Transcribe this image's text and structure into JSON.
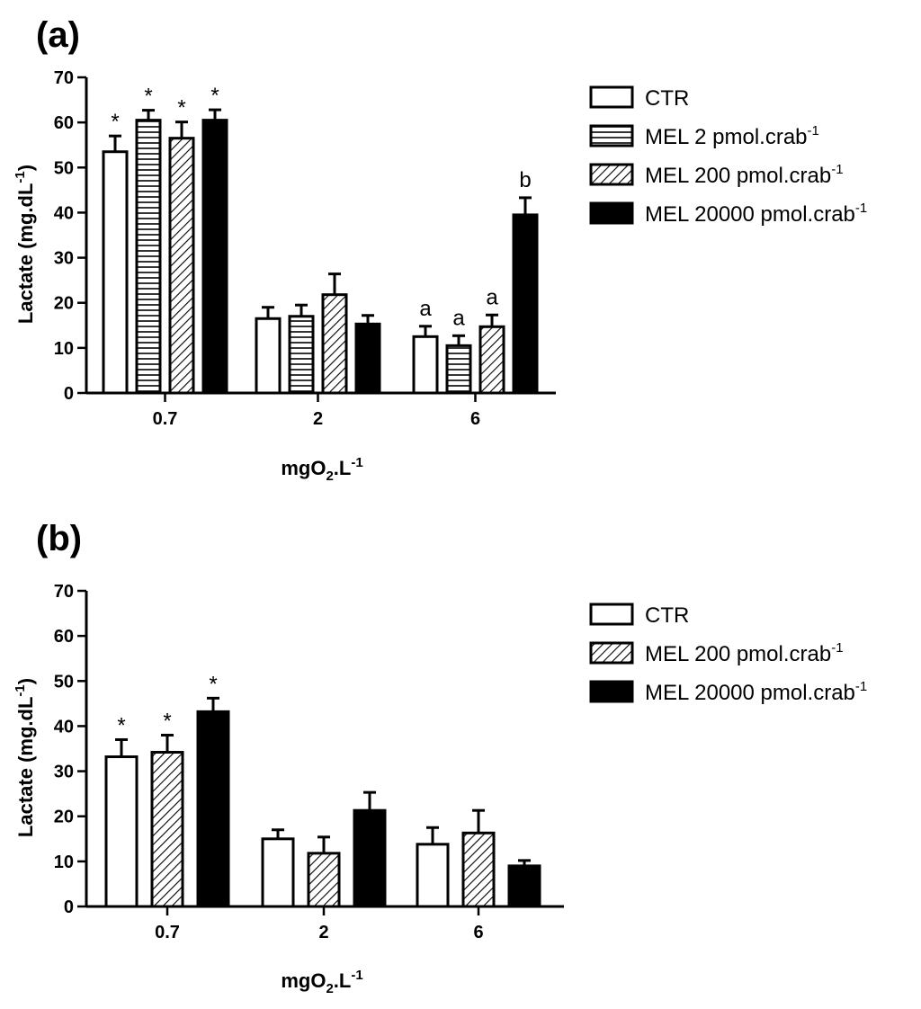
{
  "chart_data": [
    {
      "type": "bar",
      "panel_label": "(a)",
      "categories": [
        "0.7",
        "2",
        "6"
      ],
      "xlabel": "mgO",
      "xlabel_sub": "2",
      "xlabel_rest": ".L",
      "xlabel_sup": "-1",
      "ylabel": "Lactate (mg.dL",
      "ylabel_sup": "-1",
      "ylabel_end": ")",
      "ylim": [
        0,
        70
      ],
      "yticks": [
        0,
        10,
        20,
        30,
        40,
        50,
        60,
        70
      ],
      "legend_position": "right",
      "series": [
        {
          "name": "CTR",
          "unit_sup": "",
          "pattern": "open",
          "values": [
            53.5,
            16.5,
            12.5
          ],
          "errors": [
            3.5,
            2.5,
            2.3
          ],
          "annotations": [
            "*",
            "",
            "a"
          ]
        },
        {
          "name": "MEL 2 pmol.crab",
          "unit_sup": "-1",
          "pattern": "horizontal",
          "values": [
            60.5,
            17.0,
            10.5
          ],
          "errors": [
            2.2,
            2.5,
            2.2
          ],
          "annotations": [
            "*",
            "",
            "a"
          ]
        },
        {
          "name": "MEL 200 pmol.crab",
          "unit_sup": "-1",
          "pattern": "diagonal",
          "values": [
            56.5,
            21.8,
            14.7
          ],
          "errors": [
            3.6,
            4.6,
            2.6
          ],
          "annotations": [
            "*",
            "",
            "a"
          ]
        },
        {
          "name": "MEL 20000 pmol.crab",
          "unit_sup": "-1",
          "pattern": "solid",
          "values": [
            60.5,
            15.3,
            39.5
          ],
          "errors": [
            2.3,
            1.9,
            3.8
          ],
          "annotations": [
            "*",
            "",
            "b"
          ]
        }
      ]
    },
    {
      "type": "bar",
      "panel_label": "(b)",
      "categories": [
        "0.7",
        "2",
        "6"
      ],
      "xlabel": "mgO",
      "xlabel_sub": "2",
      "xlabel_rest": ".L",
      "xlabel_sup": "-1",
      "ylabel": "Lactate (mg.dL",
      "ylabel_sup": "-1",
      "ylabel_end": ")",
      "ylim": [
        0,
        70
      ],
      "yticks": [
        0,
        10,
        20,
        30,
        40,
        50,
        60,
        70
      ],
      "legend_position": "right",
      "series": [
        {
          "name": "CTR",
          "unit_sup": "",
          "pattern": "open",
          "values": [
            33.2,
            15.0,
            13.8
          ],
          "errors": [
            3.8,
            2.0,
            3.7
          ],
          "annotations": [
            "*",
            "",
            ""
          ]
        },
        {
          "name": "MEL 200 pmol.crab",
          "unit_sup": "-1",
          "pattern": "diagonal",
          "values": [
            34.2,
            11.8,
            16.3
          ],
          "errors": [
            3.8,
            3.6,
            5.0
          ],
          "annotations": [
            "*",
            "",
            ""
          ]
        },
        {
          "name": "MEL 20000 pmol.crab",
          "unit_sup": "-1",
          "pattern": "solid",
          "values": [
            43.2,
            21.3,
            9.0
          ],
          "errors": [
            3.0,
            4.0,
            1.2
          ],
          "annotations": [
            "*",
            "",
            ""
          ]
        }
      ]
    }
  ]
}
